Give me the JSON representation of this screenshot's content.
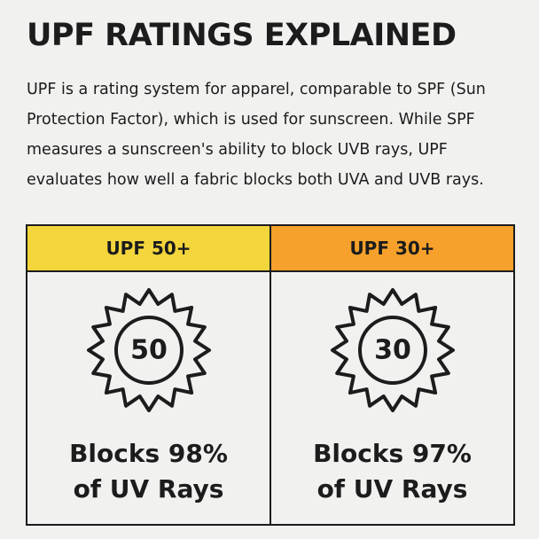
{
  "header": {
    "title": "UPF RATINGS EXPLAINED",
    "description": "UPF is a rating system for apparel, comparable to SPF (Sun Protection Factor), which is used for sunscreen. While SPF measures a sunscreen's ability to block UVB rays, UPF evaluates how well a fabric blocks both UVA and UVB rays."
  },
  "columns": [
    {
      "label": "UPF 50+",
      "color": "#f4d63c",
      "icon_number": "50",
      "lines": [
        "Blocks 98%",
        "of UV Rays"
      ]
    },
    {
      "label": "UPF 30+",
      "color": "#f6a12b",
      "icon_number": "30",
      "lines": [
        "Blocks 97%",
        "of UV Rays"
      ]
    }
  ]
}
